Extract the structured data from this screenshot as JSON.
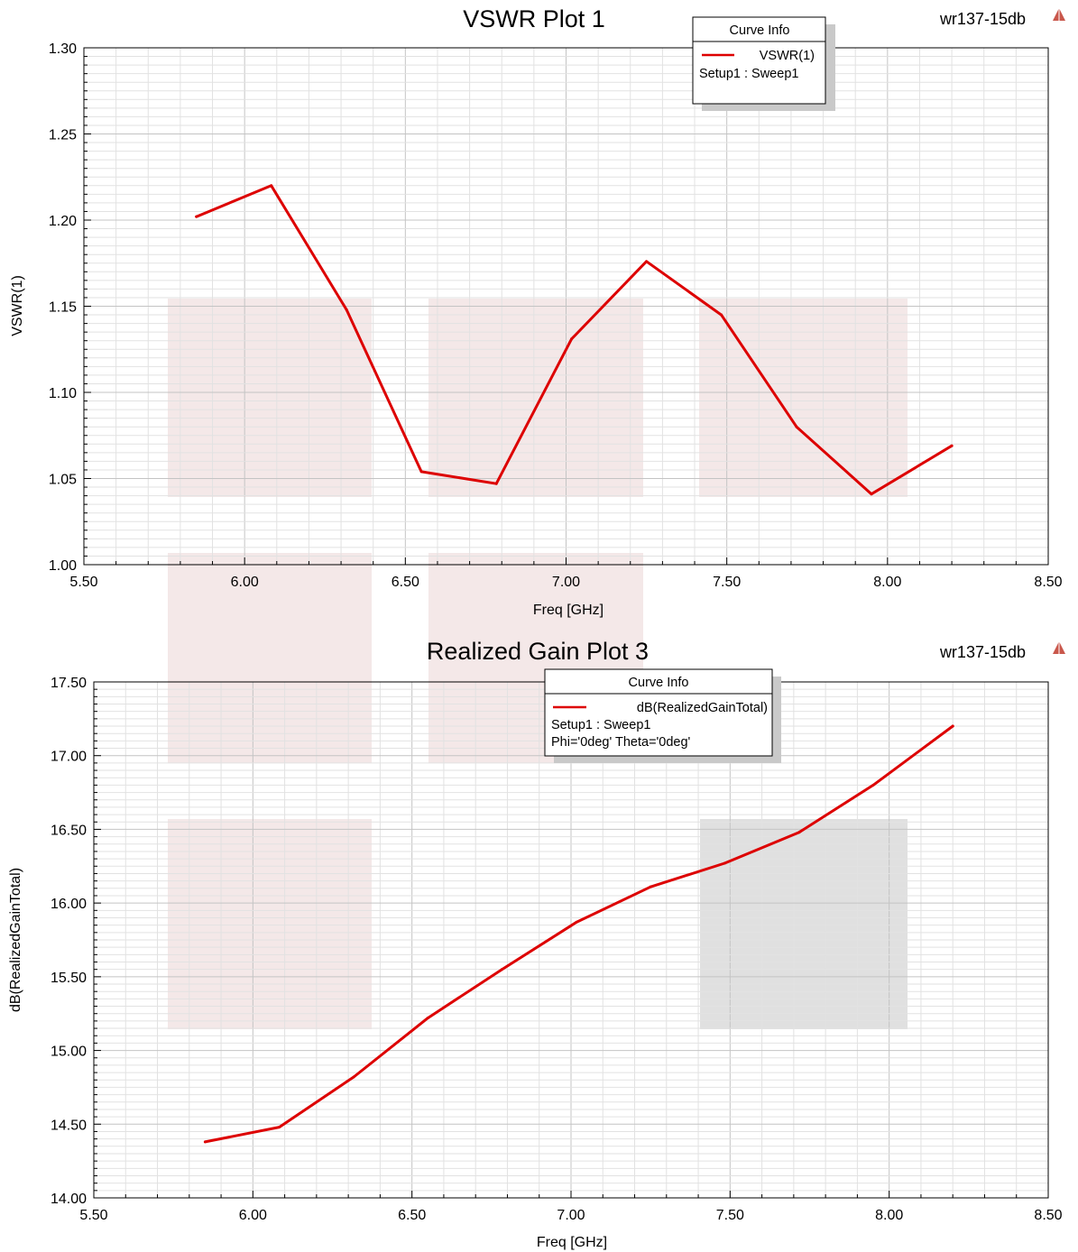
{
  "chart_data": [
    {
      "type": "line",
      "title": "VSWR Plot 1",
      "project": "wr137-15db",
      "xlabel": "Freq [GHz]",
      "ylabel": "VSWR(1)",
      "xlim": [
        5.5,
        8.5
      ],
      "ylim": [
        1.0,
        1.3
      ],
      "xticks": [
        "5.50",
        "6.00",
        "6.50",
        "7.00",
        "7.50",
        "8.00",
        "8.50"
      ],
      "yticks": [
        "1.00",
        "1.05",
        "1.10",
        "1.15",
        "1.20",
        "1.25",
        "1.30"
      ],
      "grid": true,
      "legend": {
        "title": "Curve Info",
        "placement": "top-center",
        "entries": [
          {
            "label": "VSWR(1)",
            "detail": [
              "Setup1 : Sweep1"
            ]
          }
        ]
      },
      "series": [
        {
          "name": "VSWR(1)",
          "color": "#dd0000",
          "x": [
            5.85,
            6.083,
            6.317,
            6.55,
            6.783,
            7.017,
            7.25,
            7.483,
            7.717,
            7.95,
            8.2
          ],
          "y": [
            1.202,
            1.22,
            1.148,
            1.054,
            1.047,
            1.131,
            1.176,
            1.145,
            1.08,
            1.041,
            1.069
          ]
        }
      ]
    },
    {
      "type": "line",
      "title": "Realized Gain Plot 3",
      "project": "wr137-15db",
      "xlabel": "Freq [GHz]",
      "ylabel": "dB(RealizedGainTotal)",
      "xlim": [
        5.5,
        8.5
      ],
      "ylim": [
        14.0,
        17.5
      ],
      "xticks": [
        "5.50",
        "6.00",
        "6.50",
        "7.00",
        "7.50",
        "8.00",
        "8.50"
      ],
      "yticks": [
        "14.00",
        "14.50",
        "15.00",
        "15.50",
        "16.00",
        "16.50",
        "17.00",
        "17.50"
      ],
      "grid": true,
      "legend": {
        "title": "Curve Info",
        "placement": "top-center",
        "entries": [
          {
            "label": "dB(RealizedGainTotal)",
            "detail": [
              "Setup1 : Sweep1",
              "Phi='0deg' Theta='0deg'"
            ]
          }
        ]
      },
      "series": [
        {
          "name": "dB(RealizedGainTotal)",
          "color": "#dd0000",
          "x": [
            5.85,
            6.083,
            6.317,
            6.55,
            6.783,
            7.017,
            7.25,
            7.483,
            7.717,
            7.95,
            8.2
          ],
          "y": [
            14.38,
            14.48,
            14.82,
            15.22,
            15.55,
            15.87,
            16.11,
            16.27,
            16.48,
            16.8,
            17.2
          ]
        }
      ]
    }
  ]
}
